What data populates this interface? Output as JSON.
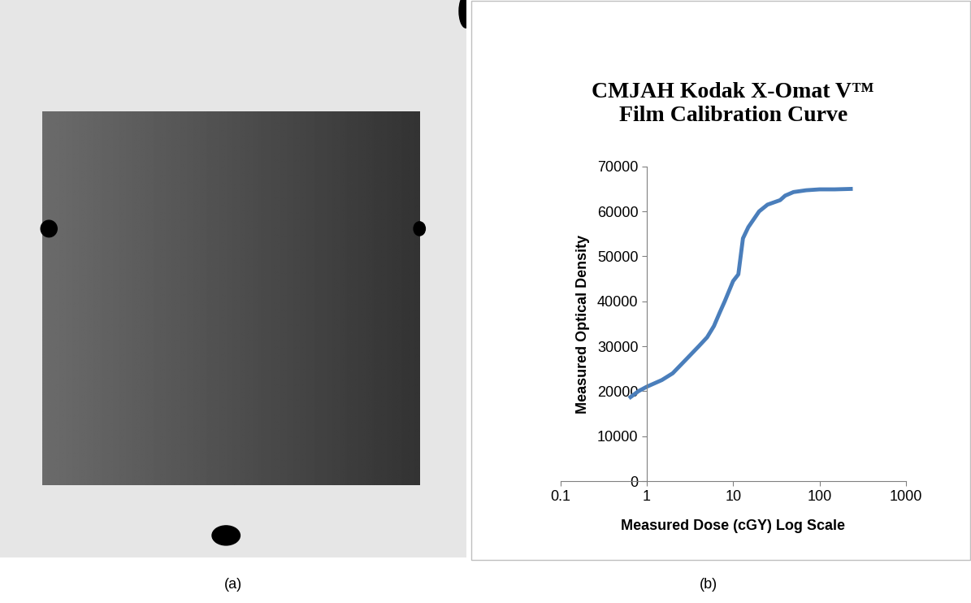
{
  "chart_data": {
    "type": "line",
    "title": "CMJAH Kodak X-Omat V™\nFilm Calibration Curve",
    "x_label": "Measured Dose (cGY) Log Scale",
    "y_label": "Measured Optical Density",
    "x": [
      0.65,
      0.8,
      1,
      1.5,
      2,
      3,
      4,
      5,
      6,
      7,
      8,
      10,
      11.5,
      13,
      15,
      20,
      25,
      35,
      40,
      50,
      70,
      100,
      150,
      230
    ],
    "values": [
      18700,
      20000,
      21000,
      22500,
      24000,
      27500,
      30000,
      32000,
      34500,
      37500,
      40000,
      44500,
      46000,
      54000,
      56500,
      60000,
      61500,
      62500,
      63500,
      64300,
      64700,
      64900,
      64900,
      65000
    ],
    "color": "#4a7ebb",
    "log": "x",
    "grid": false,
    "xlim": [
      0.1,
      1000
    ],
    "xticks": [
      0.1,
      1,
      10,
      100,
      1000
    ],
    "ylim": [
      0,
      70000
    ],
    "yticks": [
      0,
      10000,
      20000,
      30000,
      40000,
      50000,
      60000,
      70000
    ]
  },
  "panel_labels": [
    "(a)",
    "(b)"
  ]
}
